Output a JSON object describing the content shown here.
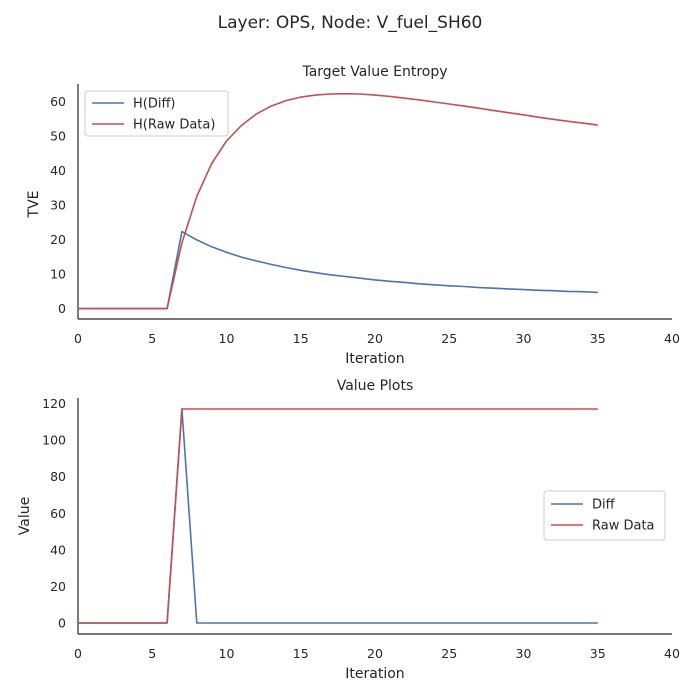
{
  "figure": {
    "suptitle": "Layer: OPS, Node: V_fuel_SH60"
  },
  "colors": {
    "blue": "#4c72b0",
    "red": "#c44e52"
  },
  "chart_data": [
    {
      "type": "line",
      "title": "Target Value Entropy",
      "xlabel": "Iteration",
      "ylabel": "TVE",
      "xlim": [
        0,
        40
      ],
      "ylim": [
        -3,
        65
      ],
      "xticks": [
        0,
        5,
        10,
        15,
        20,
        25,
        30,
        35,
        40
      ],
      "yticks": [
        0,
        10,
        20,
        30,
        40,
        50,
        60
      ],
      "legend_loc": "upper left",
      "grid": false,
      "series": [
        {
          "name": "H(Diff)",
          "color": "#4c72b0",
          "x": [
            0,
            1,
            2,
            3,
            4,
            5,
            6,
            7,
            8,
            9,
            10,
            11,
            12,
            13,
            14,
            15,
            16,
            17,
            18,
            19,
            20,
            21,
            22,
            23,
            24,
            25,
            26,
            27,
            28,
            29,
            30,
            31,
            32,
            33,
            34,
            35
          ],
          "y": [
            0,
            0,
            0,
            0,
            0,
            0,
            0,
            22.3,
            19.9,
            17.9,
            16.3,
            14.9,
            13.8,
            12.8,
            11.9,
            11.1,
            10.4,
            9.8,
            9.3,
            8.8,
            8.3,
            7.9,
            7.6,
            7.2,
            6.9,
            6.6,
            6.4,
            6.1,
            5.9,
            5.7,
            5.5,
            5.3,
            5.2,
            5.0,
            4.9,
            4.7
          ]
        },
        {
          "name": "H(Raw Data)",
          "color": "#c44e52",
          "x": [
            0,
            1,
            2,
            3,
            4,
            5,
            6,
            7,
            8,
            9,
            10,
            11,
            12,
            13,
            14,
            15,
            16,
            17,
            18,
            19,
            20,
            21,
            22,
            23,
            24,
            25,
            26,
            27,
            28,
            29,
            30,
            31,
            32,
            33,
            34,
            35
          ],
          "y": [
            0,
            0,
            0,
            0,
            0,
            0,
            0,
            19.0,
            32.5,
            42.0,
            48.5,
            53.0,
            56.3,
            58.6,
            60.2,
            61.2,
            61.8,
            62.1,
            62.2,
            62.1,
            61.8,
            61.4,
            60.9,
            60.4,
            59.8,
            59.2,
            58.6,
            58.0,
            57.3,
            56.7,
            56.1,
            55.4,
            54.8,
            54.2,
            53.7,
            53.1
          ]
        }
      ]
    },
    {
      "type": "line",
      "title": "Value Plots",
      "xlabel": "Iteration",
      "ylabel": "Value",
      "xlim": [
        0,
        40
      ],
      "ylim": [
        -6,
        123
      ],
      "xticks": [
        0,
        5,
        10,
        15,
        20,
        25,
        30,
        35,
        40
      ],
      "yticks": [
        0,
        20,
        40,
        60,
        80,
        100,
        120
      ],
      "legend_loc": "center right",
      "grid": false,
      "series": [
        {
          "name": "Diff",
          "color": "#4c72b0",
          "x": [
            0,
            1,
            2,
            3,
            4,
            5,
            6,
            7,
            8,
            9,
            10,
            11,
            12,
            13,
            14,
            15,
            16,
            17,
            18,
            19,
            20,
            21,
            22,
            23,
            24,
            25,
            26,
            27,
            28,
            29,
            30,
            31,
            32,
            33,
            34,
            35
          ],
          "y": [
            0,
            0,
            0,
            0,
            0,
            0,
            0,
            117,
            0,
            0,
            0,
            0,
            0,
            0,
            0,
            0,
            0,
            0,
            0,
            0,
            0,
            0,
            0,
            0,
            0,
            0,
            0,
            0,
            0,
            0,
            0,
            0,
            0,
            0,
            0,
            0
          ]
        },
        {
          "name": "Raw Data",
          "color": "#c44e52",
          "x": [
            0,
            1,
            2,
            3,
            4,
            5,
            6,
            7,
            8,
            9,
            10,
            11,
            12,
            13,
            14,
            15,
            16,
            17,
            18,
            19,
            20,
            21,
            22,
            23,
            24,
            25,
            26,
            27,
            28,
            29,
            30,
            31,
            32,
            33,
            34,
            35
          ],
          "y": [
            0,
            0,
            0,
            0,
            0,
            0,
            0,
            117,
            117,
            117,
            117,
            117,
            117,
            117,
            117,
            117,
            117,
            117,
            117,
            117,
            117,
            117,
            117,
            117,
            117,
            117,
            117,
            117,
            117,
            117,
            117,
            117,
            117,
            117,
            117,
            117
          ]
        }
      ]
    }
  ]
}
